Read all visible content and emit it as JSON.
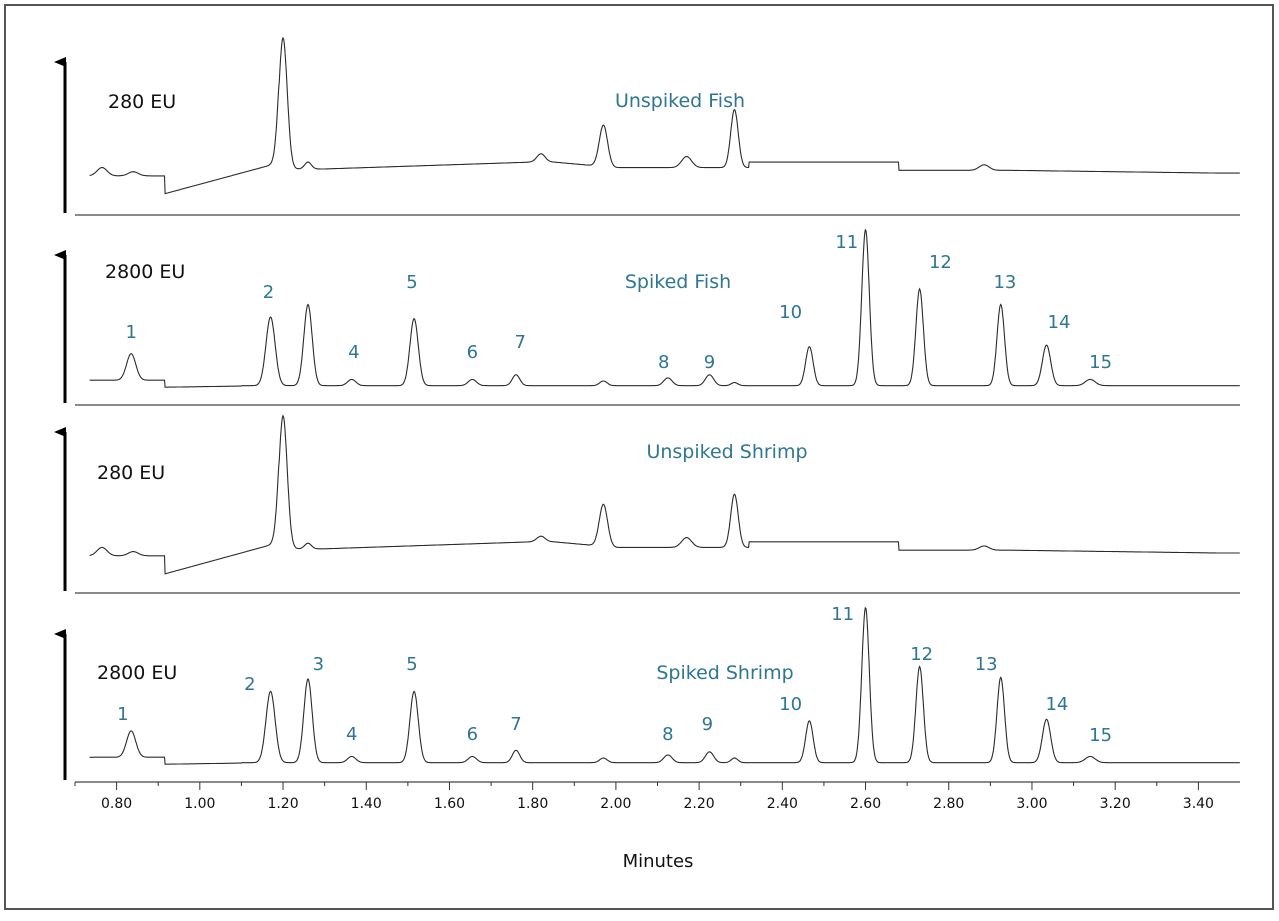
{
  "chart_data": {
    "type": "line",
    "xlabel": "Minutes",
    "x_ticks": [
      "0.80",
      "1.00",
      "1.20",
      "1.40",
      "1.60",
      "1.80",
      "2.00",
      "2.20",
      "2.40",
      "2.60",
      "2.80",
      "3.00",
      "3.20",
      "3.40"
    ],
    "x_tick_values": [
      0.8,
      1.0,
      1.2,
      1.4,
      1.6,
      1.8,
      2.0,
      2.2,
      2.4,
      2.6,
      2.8,
      3.0,
      3.2,
      3.4
    ],
    "xlim": [
      0.7,
      3.5
    ],
    "panels": [
      {
        "title": "Unspiked Fish",
        "scale_label": "280 EU",
        "kind": "unspiked",
        "baseline_start": 0.05,
        "baseline_end": 0.3,
        "peaks": [
          {
            "x": 0.765,
            "h": 0.06,
            "w": 0.012
          },
          {
            "x": 0.84,
            "h": 0.03,
            "w": 0.012
          },
          {
            "x": 1.2,
            "h": 0.95,
            "w": 0.01
          },
          {
            "x": 1.26,
            "h": 0.05,
            "w": 0.008
          },
          {
            "x": 1.82,
            "h": 0.06,
            "w": 0.01
          },
          {
            "x": 1.97,
            "h": 0.3,
            "w": 0.01
          },
          {
            "x": 2.17,
            "h": 0.08,
            "w": 0.012
          },
          {
            "x": 2.285,
            "h": 0.42,
            "w": 0.009
          },
          {
            "x": 2.885,
            "h": 0.04,
            "w": 0.012
          }
        ],
        "labels": []
      },
      {
        "title": "Spiked Fish",
        "scale_label": "2800 EU",
        "kind": "spiked",
        "peaks": [
          {
            "x": 0.835,
            "h": 0.17,
            "w": 0.011
          },
          {
            "x": 1.17,
            "h": 0.44,
            "w": 0.011
          },
          {
            "x": 1.26,
            "h": 0.52,
            "w": 0.01
          },
          {
            "x": 1.365,
            "h": 0.04,
            "w": 0.01
          },
          {
            "x": 1.515,
            "h": 0.43,
            "w": 0.01
          },
          {
            "x": 1.655,
            "h": 0.04,
            "w": 0.01
          },
          {
            "x": 1.76,
            "h": 0.07,
            "w": 0.009
          },
          {
            "x": 1.97,
            "h": 0.03,
            "w": 0.009
          },
          {
            "x": 2.125,
            "h": 0.05,
            "w": 0.01
          },
          {
            "x": 2.225,
            "h": 0.07,
            "w": 0.01
          },
          {
            "x": 2.285,
            "h": 0.02,
            "w": 0.008
          },
          {
            "x": 2.465,
            "h": 0.25,
            "w": 0.009
          },
          {
            "x": 2.6,
            "h": 1.0,
            "w": 0.009
          },
          {
            "x": 2.73,
            "h": 0.62,
            "w": 0.009
          },
          {
            "x": 2.925,
            "h": 0.52,
            "w": 0.009
          },
          {
            "x": 3.035,
            "h": 0.26,
            "w": 0.01
          },
          {
            "x": 3.14,
            "h": 0.04,
            "w": 0.012
          }
        ],
        "labels": [
          {
            "text": "1",
            "x": 0.835
          },
          {
            "text": "2",
            "x": 1.165
          },
          {
            "text": "4",
            "x": 1.37
          },
          {
            "text": "5",
            "x": 1.51
          },
          {
            "text": "6",
            "x": 1.655
          },
          {
            "text": "7",
            "x": 1.77
          },
          {
            "text": "8",
            "x": 2.115
          },
          {
            "text": "9",
            "x": 2.225
          },
          {
            "text": "10",
            "x": 2.42
          },
          {
            "text": "11",
            "x": 2.555
          },
          {
            "text": "12",
            "x": 2.78
          },
          {
            "text": "13",
            "x": 2.935
          },
          {
            "text": "14",
            "x": 3.065
          },
          {
            "text": "15",
            "x": 3.165
          }
        ]
      },
      {
        "title": "Unspiked Shrimp",
        "scale_label": "280 EU",
        "kind": "unspiked",
        "baseline_start": 0.05,
        "baseline_end": 0.33,
        "peaks": [
          {
            "x": 0.765,
            "h": 0.06,
            "w": 0.012
          },
          {
            "x": 0.84,
            "h": 0.03,
            "w": 0.012
          },
          {
            "x": 1.2,
            "h": 0.95,
            "w": 0.01
          },
          {
            "x": 1.26,
            "h": 0.04,
            "w": 0.008
          },
          {
            "x": 1.82,
            "h": 0.04,
            "w": 0.01
          },
          {
            "x": 1.97,
            "h": 0.3,
            "w": 0.01
          },
          {
            "x": 2.17,
            "h": 0.07,
            "w": 0.012
          },
          {
            "x": 2.285,
            "h": 0.38,
            "w": 0.009
          },
          {
            "x": 2.885,
            "h": 0.03,
            "w": 0.012
          }
        ],
        "labels": []
      },
      {
        "title": "Spiked Shrimp",
        "scale_label": "2800 EU",
        "kind": "spiked",
        "peaks": [
          {
            "x": 0.835,
            "h": 0.17,
            "w": 0.011
          },
          {
            "x": 1.17,
            "h": 0.46,
            "w": 0.011
          },
          {
            "x": 1.26,
            "h": 0.54,
            "w": 0.01
          },
          {
            "x": 1.365,
            "h": 0.04,
            "w": 0.01
          },
          {
            "x": 1.515,
            "h": 0.46,
            "w": 0.01
          },
          {
            "x": 1.655,
            "h": 0.04,
            "w": 0.01
          },
          {
            "x": 1.76,
            "h": 0.08,
            "w": 0.009
          },
          {
            "x": 1.97,
            "h": 0.03,
            "w": 0.009
          },
          {
            "x": 2.125,
            "h": 0.05,
            "w": 0.01
          },
          {
            "x": 2.225,
            "h": 0.07,
            "w": 0.01
          },
          {
            "x": 2.285,
            "h": 0.03,
            "w": 0.008
          },
          {
            "x": 2.465,
            "h": 0.27,
            "w": 0.009
          },
          {
            "x": 2.6,
            "h": 1.0,
            "w": 0.009
          },
          {
            "x": 2.73,
            "h": 0.62,
            "w": 0.009
          },
          {
            "x": 2.925,
            "h": 0.55,
            "w": 0.009
          },
          {
            "x": 3.035,
            "h": 0.28,
            "w": 0.01
          },
          {
            "x": 3.14,
            "h": 0.04,
            "w": 0.012
          }
        ],
        "labels": [
          {
            "text": "1",
            "x": 0.815
          },
          {
            "text": "2",
            "x": 1.12
          },
          {
            "text": "3",
            "x": 1.285
          },
          {
            "text": "4",
            "x": 1.365
          },
          {
            "text": "5",
            "x": 1.51
          },
          {
            "text": "6",
            "x": 1.655
          },
          {
            "text": "7",
            "x": 1.76
          },
          {
            "text": "8",
            "x": 2.125
          },
          {
            "text": "9",
            "x": 2.22
          },
          {
            "text": "10",
            "x": 2.42
          },
          {
            "text": "11",
            "x": 2.545
          },
          {
            "text": "12",
            "x": 2.735
          },
          {
            "text": "13",
            "x": 2.89
          },
          {
            "text": "14",
            "x": 3.06
          },
          {
            "text": "15",
            "x": 3.165
          }
        ]
      }
    ]
  }
}
